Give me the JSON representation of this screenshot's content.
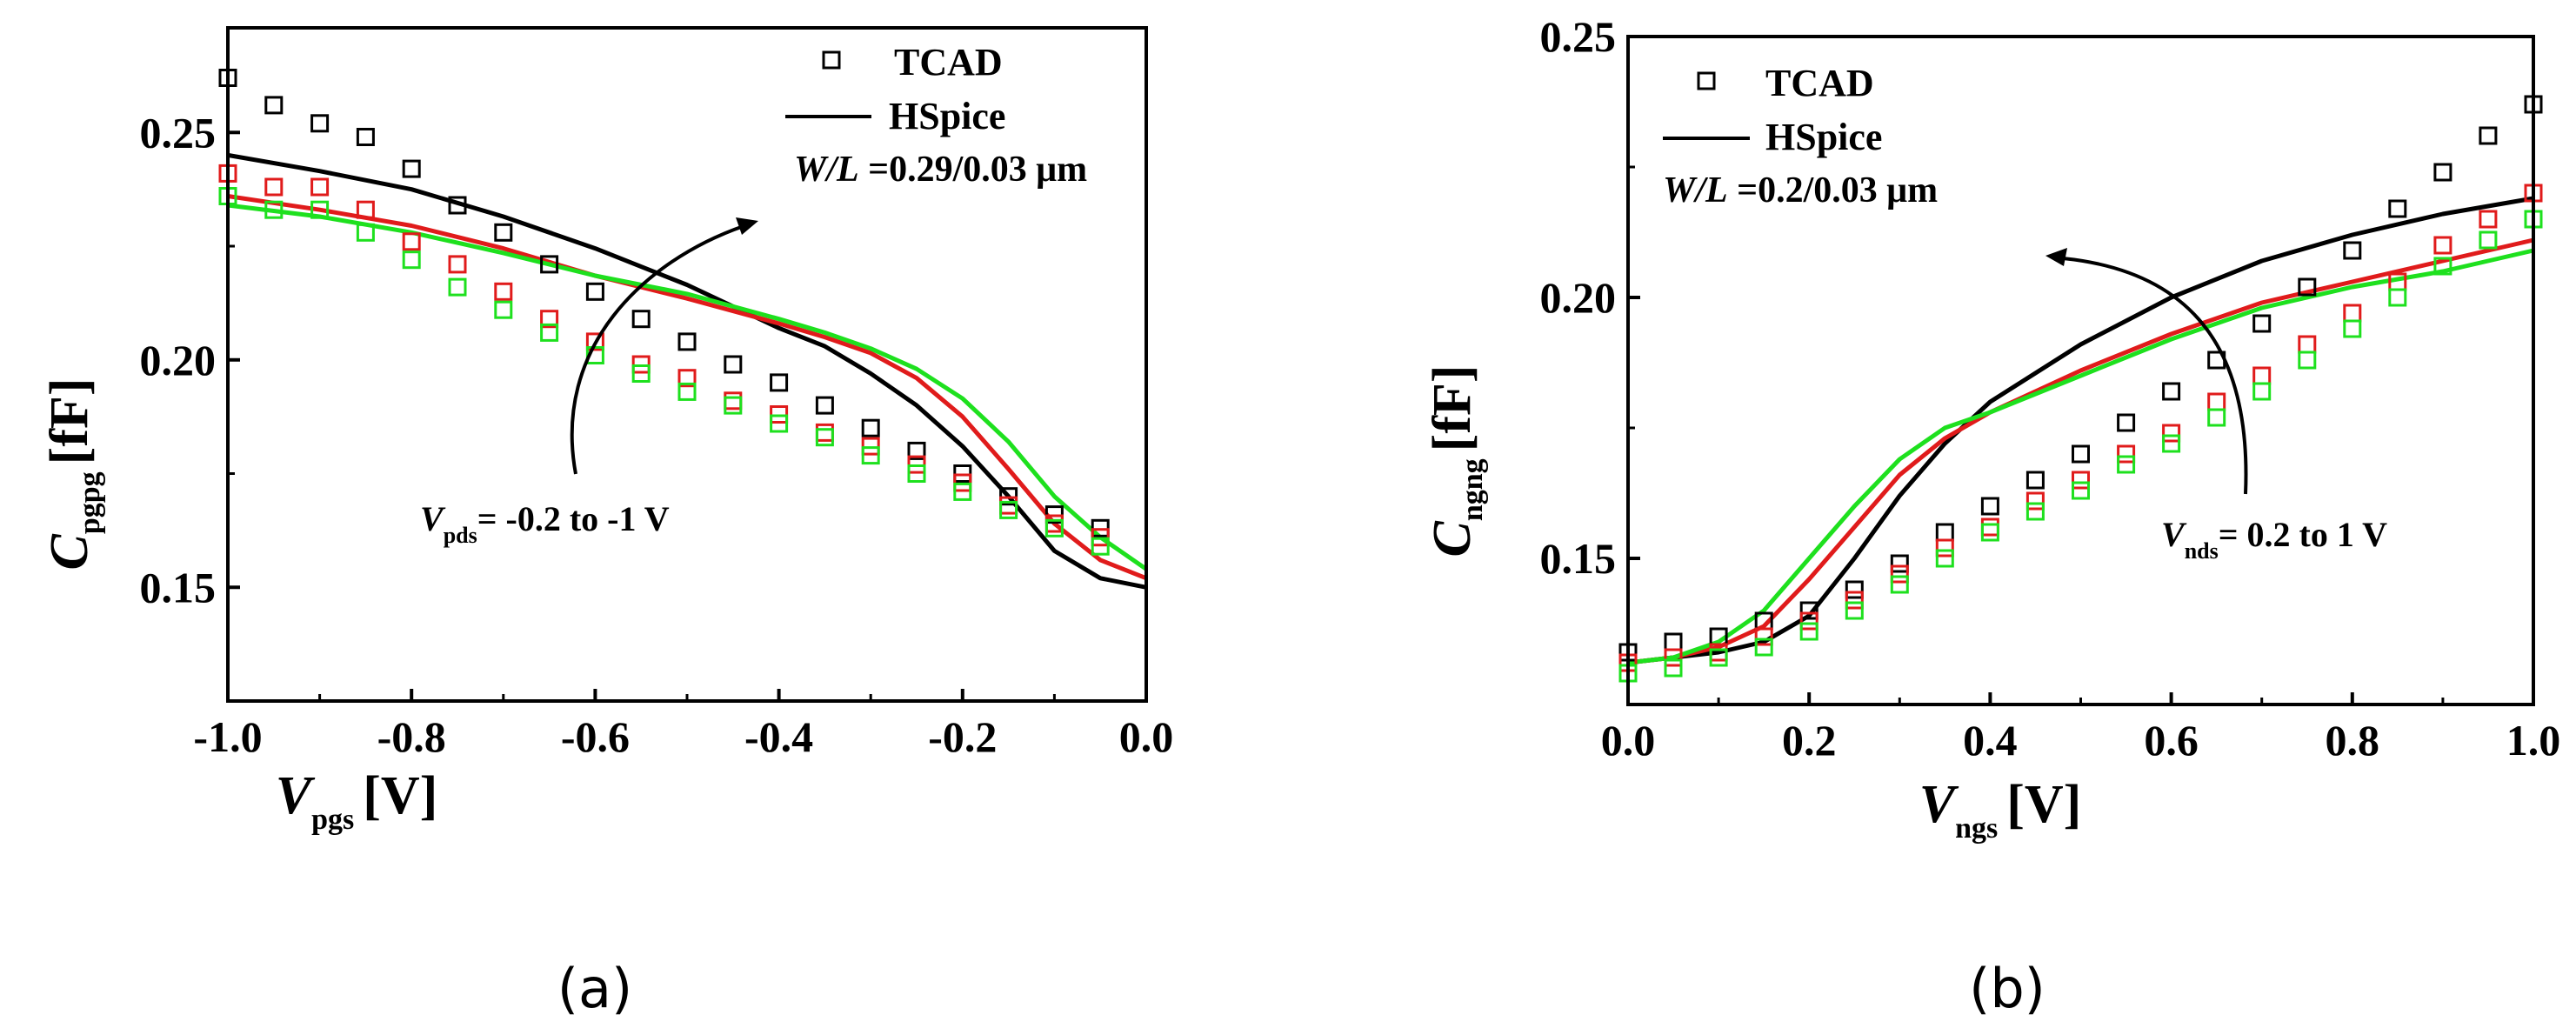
{
  "colors": {
    "black": "#000000",
    "red": "#e01b1b",
    "green": "#1ee01e"
  },
  "chart_data": [
    {
      "type": "scatter+line",
      "panel_label": "(a)",
      "xlabel_main": "V",
      "xlabel_sub": "pgs",
      "xlabel_unit": "[V]",
      "ylabel_main": "C",
      "ylabel_sub": "pgpg",
      "ylabel_unit": "[fF]",
      "xlim": [
        -1.0,
        0.0
      ],
      "ylim": [
        0.125,
        0.273
      ],
      "xticks": [
        -1.0,
        -0.8,
        -0.6,
        -0.4,
        -0.2,
        0.0
      ],
      "xtick_labels": [
        "-1.0",
        "-0.8",
        "-0.6",
        "-0.4",
        "-0.2",
        "0.0"
      ],
      "yticks": [
        0.15,
        0.2,
        0.25
      ],
      "ytick_labels": [
        "0.15",
        "0.20",
        "0.25"
      ],
      "legend": {
        "placement": "top-right",
        "markers_label": "TCAD",
        "line_label": "HSpice"
      },
      "wl_label": "W/L",
      "wl_value": " =0.29/0.03 μm",
      "annotation_main": "V",
      "annotation_sub": "pds",
      "annotation_rest": "= -0.2 to -1 V",
      "scatter": [
        {
          "name": "TCAD Vpds=-0.2",
          "color": "black",
          "x": [
            -1.0,
            -0.95,
            -0.9,
            -0.85,
            -0.8,
            -0.75,
            -0.7,
            -0.65,
            -0.6,
            -0.55,
            -0.5,
            -0.45,
            -0.4,
            -0.35,
            -0.3,
            -0.25,
            -0.2,
            -0.15,
            -0.1,
            -0.05
          ],
          "y": [
            0.262,
            0.256,
            0.252,
            0.249,
            0.242,
            0.234,
            0.228,
            0.221,
            0.215,
            0.209,
            0.204,
            0.199,
            0.195,
            0.19,
            0.185,
            0.18,
            0.175,
            0.17,
            0.166,
            0.163
          ]
        },
        {
          "name": "TCAD Vpds=-0.6",
          "color": "red",
          "x": [
            -1.0,
            -0.95,
            -0.9,
            -0.85,
            -0.8,
            -0.75,
            -0.7,
            -0.65,
            -0.6,
            -0.55,
            -0.5,
            -0.45,
            -0.4,
            -0.35,
            -0.3,
            -0.25,
            -0.2,
            -0.15,
            -0.1,
            -0.05
          ],
          "y": [
            0.241,
            0.238,
            0.238,
            0.233,
            0.226,
            0.221,
            0.215,
            0.209,
            0.204,
            0.199,
            0.196,
            0.191,
            0.188,
            0.184,
            0.181,
            0.177,
            0.173,
            0.168,
            0.164,
            0.161
          ]
        },
        {
          "name": "TCAD Vpds=-1",
          "color": "green",
          "x": [
            -1.0,
            -0.95,
            -0.9,
            -0.85,
            -0.8,
            -0.75,
            -0.7,
            -0.65,
            -0.6,
            -0.55,
            -0.5,
            -0.45,
            -0.4,
            -0.35,
            -0.3,
            -0.25,
            -0.2,
            -0.15,
            -0.1,
            -0.05
          ],
          "y": [
            0.236,
            0.233,
            0.233,
            0.228,
            0.222,
            0.216,
            0.211,
            0.206,
            0.201,
            0.197,
            0.193,
            0.19,
            0.186,
            0.183,
            0.179,
            0.175,
            0.171,
            0.167,
            0.163,
            0.159
          ]
        }
      ],
      "lines": [
        {
          "name": "HSpice Vpds=-0.2",
          "color": "black",
          "x": [
            -1.0,
            -0.9,
            -0.8,
            -0.7,
            -0.6,
            -0.5,
            -0.4,
            -0.35,
            -0.3,
            -0.25,
            -0.2,
            -0.15,
            -0.1,
            -0.05,
            0.0
          ],
          "y": [
            0.245,
            0.2415,
            0.2375,
            0.2315,
            0.2245,
            0.2165,
            0.207,
            0.203,
            0.197,
            0.19,
            0.181,
            0.17,
            0.158,
            0.152,
            0.15
          ]
        },
        {
          "name": "HSpice Vpds=-0.6",
          "color": "red",
          "x": [
            -1.0,
            -0.9,
            -0.8,
            -0.7,
            -0.6,
            -0.5,
            -0.4,
            -0.35,
            -0.3,
            -0.25,
            -0.2,
            -0.15,
            -0.1,
            -0.05,
            0.0
          ],
          "y": [
            0.236,
            0.233,
            0.2295,
            0.2245,
            0.2185,
            0.2135,
            0.208,
            0.205,
            0.2015,
            0.196,
            0.1875,
            0.176,
            0.164,
            0.156,
            0.152
          ]
        },
        {
          "name": "HSpice Vpds=-1",
          "color": "green",
          "x": [
            -1.0,
            -0.9,
            -0.8,
            -0.7,
            -0.6,
            -0.5,
            -0.4,
            -0.35,
            -0.3,
            -0.25,
            -0.2,
            -0.15,
            -0.1,
            -0.05,
            0.0
          ],
          "y": [
            0.234,
            0.2315,
            0.228,
            0.2235,
            0.2185,
            0.2145,
            0.209,
            0.206,
            0.2025,
            0.198,
            0.1915,
            0.182,
            0.17,
            0.161,
            0.154
          ]
        }
      ]
    },
    {
      "type": "scatter+line",
      "panel_label": "(b)",
      "xlabel_main": "V",
      "xlabel_sub": "ngs",
      "xlabel_unit": "[V]",
      "ylabel_main": "C",
      "ylabel_sub": "ngng",
      "ylabel_unit": "[fF]",
      "xlim": [
        0.0,
        1.0
      ],
      "ylim": [
        0.122,
        0.25
      ],
      "xticks": [
        0.0,
        0.2,
        0.4,
        0.6,
        0.8,
        1.0
      ],
      "xtick_labels": [
        "0.0",
        "0.2",
        "0.4",
        "0.6",
        "0.8",
        "1.0"
      ],
      "yticks": [
        0.15,
        0.2,
        0.25
      ],
      "ytick_labels": [
        "0.15",
        "0.20",
        "0.25"
      ],
      "legend": {
        "placement": "top-left",
        "markers_label": "TCAD",
        "line_label": "HSpice"
      },
      "wl_label": "W/L",
      "wl_value": " =0.2/0.03 μm",
      "annotation_main": "V",
      "annotation_sub": "nds",
      "annotation_rest": "= 0.2 to 1 V",
      "scatter": [
        {
          "name": "TCAD Vnds=0.2",
          "color": "black",
          "x": [
            0.0,
            0.05,
            0.1,
            0.15,
            0.2,
            0.25,
            0.3,
            0.35,
            0.4,
            0.45,
            0.5,
            0.55,
            0.6,
            0.65,
            0.7,
            0.75,
            0.8,
            0.85,
            0.9,
            0.95,
            1.0
          ],
          "y": [
            0.132,
            0.134,
            0.135,
            0.138,
            0.14,
            0.144,
            0.149,
            0.155,
            0.16,
            0.165,
            0.17,
            0.176,
            0.182,
            0.188,
            0.195,
            0.202,
            0.209,
            0.217,
            0.224,
            0.231,
            0.237
          ]
        },
        {
          "name": "TCAD Vnds=0.6",
          "color": "red",
          "x": [
            0.0,
            0.05,
            0.1,
            0.15,
            0.2,
            0.25,
            0.3,
            0.35,
            0.4,
            0.45,
            0.5,
            0.55,
            0.6,
            0.65,
            0.7,
            0.75,
            0.8,
            0.85,
            0.9,
            0.95,
            1.0
          ],
          "y": [
            0.13,
            0.131,
            0.132,
            0.135,
            0.138,
            0.142,
            0.147,
            0.152,
            0.156,
            0.161,
            0.165,
            0.17,
            0.174,
            0.18,
            0.185,
            0.191,
            0.197,
            0.203,
            0.21,
            0.215,
            0.22
          ]
        },
        {
          "name": "TCAD Vnds=1",
          "color": "green",
          "x": [
            0.0,
            0.05,
            0.1,
            0.15,
            0.2,
            0.25,
            0.3,
            0.35,
            0.4,
            0.45,
            0.5,
            0.55,
            0.6,
            0.65,
            0.7,
            0.75,
            0.8,
            0.85,
            0.9,
            0.95,
            1.0
          ],
          "y": [
            0.128,
            0.129,
            0.131,
            0.133,
            0.136,
            0.14,
            0.145,
            0.15,
            0.155,
            0.159,
            0.163,
            0.168,
            0.172,
            0.177,
            0.182,
            0.188,
            0.194,
            0.2,
            0.206,
            0.211,
            0.215
          ]
        }
      ],
      "lines": [
        {
          "name": "HSpice Vnds=0.2",
          "color": "black",
          "x": [
            0.0,
            0.05,
            0.1,
            0.15,
            0.2,
            0.25,
            0.3,
            0.35,
            0.4,
            0.5,
            0.6,
            0.7,
            0.8,
            0.9,
            1.0
          ],
          "y": [
            0.13,
            0.131,
            0.132,
            0.134,
            0.139,
            0.15,
            0.162,
            0.172,
            0.18,
            0.191,
            0.2,
            0.207,
            0.212,
            0.216,
            0.219
          ]
        },
        {
          "name": "HSpice Vnds=0.6",
          "color": "red",
          "x": [
            0.0,
            0.05,
            0.1,
            0.15,
            0.2,
            0.25,
            0.3,
            0.35,
            0.4,
            0.5,
            0.6,
            0.7,
            0.8,
            0.9,
            1.0
          ],
          "y": [
            0.13,
            0.131,
            0.133,
            0.137,
            0.146,
            0.156,
            0.166,
            0.173,
            0.178,
            0.186,
            0.193,
            0.199,
            0.203,
            0.207,
            0.211
          ]
        },
        {
          "name": "HSpice Vnds=1",
          "color": "green",
          "x": [
            0.0,
            0.05,
            0.1,
            0.15,
            0.2,
            0.25,
            0.3,
            0.35,
            0.4,
            0.5,
            0.6,
            0.7,
            0.8,
            0.9,
            1.0
          ],
          "y": [
            0.13,
            0.131,
            0.134,
            0.14,
            0.15,
            0.16,
            0.169,
            0.175,
            0.178,
            0.185,
            0.192,
            0.198,
            0.202,
            0.205,
            0.209
          ]
        }
      ]
    }
  ]
}
